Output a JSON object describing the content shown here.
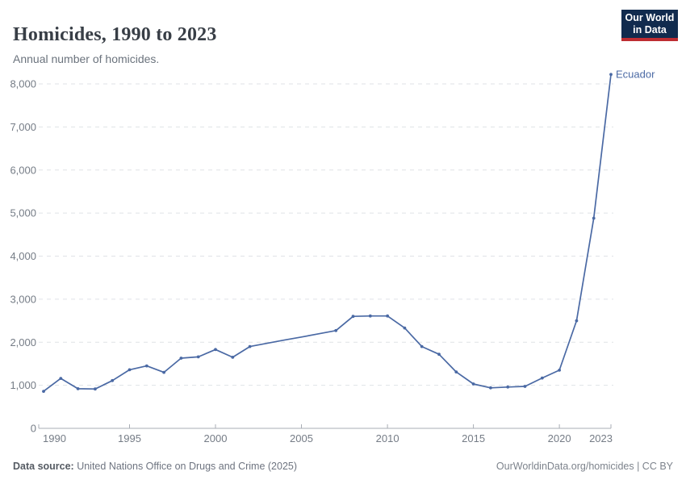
{
  "header": {
    "title": "Homicides, 1990 to 2023",
    "subtitle": "Annual number of homicides."
  },
  "logo": {
    "line1": "Our World",
    "line2": "in Data",
    "bg_color": "#112b4e",
    "accent_color": "#be2d32"
  },
  "chart_data": {
    "type": "line",
    "title": "Homicides, 1990 to 2023",
    "xlabel": "",
    "ylabel": "",
    "xlim": [
      1990,
      2023
    ],
    "ylim": [
      0,
      8000
    ],
    "x_ticks": [
      1990,
      1995,
      2000,
      2005,
      2010,
      2015,
      2020,
      2023
    ],
    "y_ticks": [
      0,
      1000,
      2000,
      3000,
      4000,
      5000,
      6000,
      7000,
      8000
    ],
    "grid": "horizontal-dashed",
    "grid_color": "#dfe2e6",
    "axis_color": "#a8adb4",
    "legend_position": "end-of-line-label",
    "series": [
      {
        "name": "Ecuador",
        "color": "#4a69a4",
        "points": [
          {
            "year": 1990,
            "value": 860,
            "marker": true
          },
          {
            "year": 1991,
            "value": 1160,
            "marker": true
          },
          {
            "year": 1992,
            "value": 920,
            "marker": true
          },
          {
            "year": 1993,
            "value": 915,
            "marker": true
          },
          {
            "year": 1994,
            "value": 1110,
            "marker": true
          },
          {
            "year": 1995,
            "value": 1360,
            "marker": true
          },
          {
            "year": 1996,
            "value": 1450,
            "marker": true
          },
          {
            "year": 1997,
            "value": 1300,
            "marker": true
          },
          {
            "year": 1998,
            "value": 1630,
            "marker": true
          },
          {
            "year": 1999,
            "value": 1660,
            "marker": true
          },
          {
            "year": 2000,
            "value": 1830,
            "marker": true
          },
          {
            "year": 2001,
            "value": 1650,
            "marker": true
          },
          {
            "year": 2002,
            "value": 1900,
            "marker": true
          },
          {
            "year": 2003,
            "value": 1975,
            "marker": false,
            "interpolated": true
          },
          {
            "year": 2004,
            "value": 2050,
            "marker": false,
            "interpolated": true
          },
          {
            "year": 2005,
            "value": 2120,
            "marker": false,
            "interpolated": true
          },
          {
            "year": 2006,
            "value": 2195,
            "marker": false,
            "interpolated": true
          },
          {
            "year": 2007,
            "value": 2270,
            "marker": true
          },
          {
            "year": 2008,
            "value": 2600,
            "marker": true
          },
          {
            "year": 2009,
            "value": 2610,
            "marker": true
          },
          {
            "year": 2010,
            "value": 2610,
            "marker": true
          },
          {
            "year": 2011,
            "value": 2330,
            "marker": true
          },
          {
            "year": 2012,
            "value": 1900,
            "marker": true
          },
          {
            "year": 2013,
            "value": 1720,
            "marker": true
          },
          {
            "year": 2014,
            "value": 1310,
            "marker": true
          },
          {
            "year": 2015,
            "value": 1030,
            "marker": true
          },
          {
            "year": 2016,
            "value": 940,
            "marker": true
          },
          {
            "year": 2017,
            "value": 960,
            "marker": true
          },
          {
            "year": 2018,
            "value": 975,
            "marker": true
          },
          {
            "year": 2019,
            "value": 1170,
            "marker": true
          },
          {
            "year": 2020,
            "value": 1350,
            "marker": true
          },
          {
            "year": 2021,
            "value": 2500,
            "marker": true
          },
          {
            "year": 2022,
            "value": 4880,
            "marker": true
          },
          {
            "year": 2023,
            "value": 8220,
            "marker": true
          }
        ]
      }
    ]
  },
  "footer": {
    "source_label": "Data source:",
    "source_value": " United Nations Office on Drugs and Crime (2025)",
    "credit": "OurWorldinData.org/homicides | CC BY"
  }
}
